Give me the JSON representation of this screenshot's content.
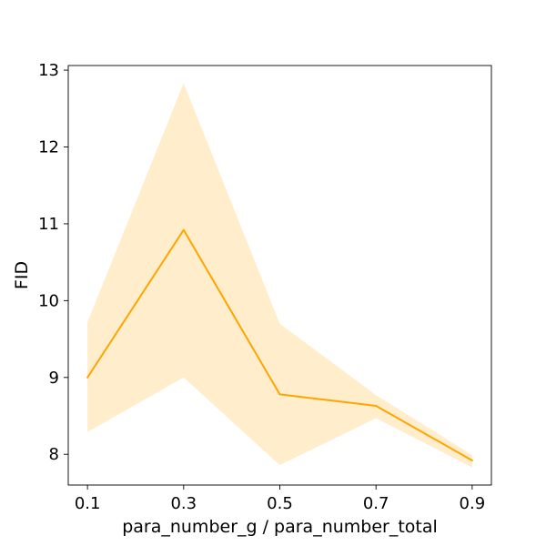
{
  "chart_data": {
    "type": "line",
    "xlabel": "para_number_g / para_number_total",
    "ylabel": "FID",
    "xlim": [
      0.06,
      0.94
    ],
    "ylim": [
      7.6,
      13.06
    ],
    "x_ticks": [
      "0.1",
      "0.3",
      "0.5",
      "0.7",
      "0.9"
    ],
    "y_ticks": [
      "8",
      "9",
      "10",
      "11",
      "12",
      "13"
    ],
    "grid": false,
    "series": [
      {
        "x": [
          0.1,
          0.3,
          0.5,
          0.7,
          0.9
        ],
        "values": [
          9.0,
          10.92,
          8.78,
          8.63,
          7.92
        ],
        "band_upper": [
          9.72,
          12.83,
          9.7,
          8.77,
          7.99
        ],
        "band_lower": [
          8.29,
          9.0,
          7.86,
          8.47,
          7.83
        ],
        "color": "#ffa500",
        "band_color": "#ffa500",
        "band_opacity": 0.2
      }
    ]
  }
}
